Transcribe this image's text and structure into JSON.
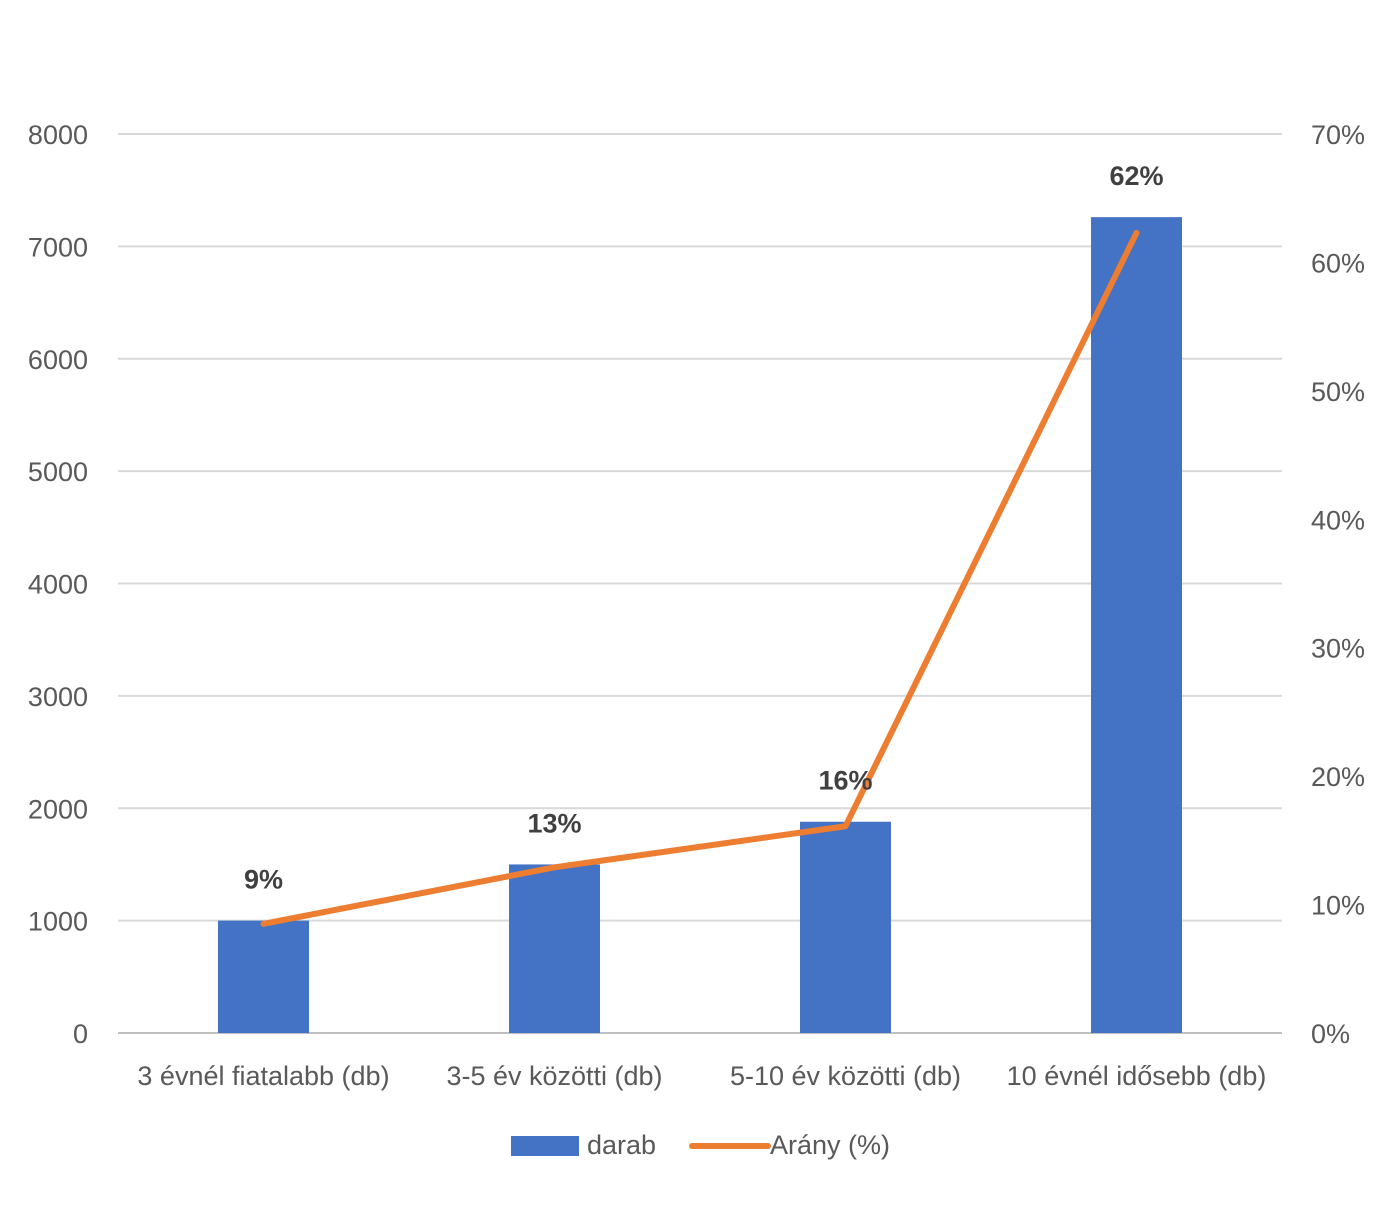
{
  "chart_data": {
    "type": "bar",
    "categories": [
      "3 évnél fiatalabb (db)",
      "3-5 év közötti (db)",
      "5-10 év közötti (db)",
      "10 évnél idősebb (db)"
    ],
    "series": [
      {
        "name": "darab",
        "type": "bar",
        "axis": "left",
        "color": "#4472C4",
        "values": [
          1000,
          1500,
          1880,
          7260
        ]
      },
      {
        "name": "Arány (%)",
        "type": "line",
        "axis": "right",
        "color": "#ED7D31",
        "values": [
          8.5,
          12.9,
          16.1,
          62.3
        ],
        "data_labels": [
          "9%",
          "13%",
          "16%",
          "62%"
        ]
      }
    ],
    "y_left": {
      "min": 0,
      "max": 8000,
      "ticks": [
        "0",
        "1000",
        "2000",
        "3000",
        "4000",
        "5000",
        "6000",
        "7000",
        "8000"
      ]
    },
    "y_right": {
      "min": 0,
      "max": 70,
      "ticks": [
        "0%",
        "10%",
        "20%",
        "30%",
        "40%",
        "50%",
        "60%",
        "70%"
      ]
    },
    "grid": true,
    "legend_position": "bottom"
  }
}
